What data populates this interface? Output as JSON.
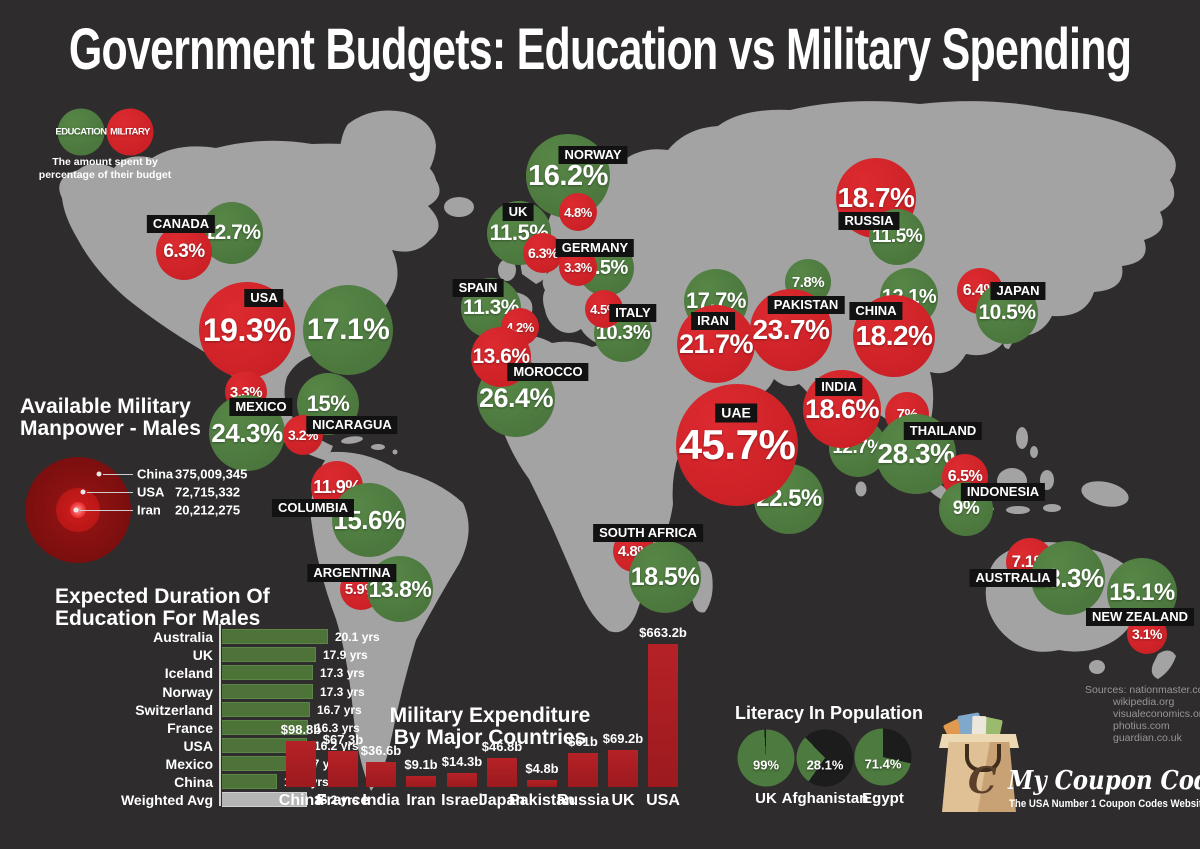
{
  "title": "Government Budgets: Education vs Military Spending",
  "legend": {
    "education_label": "EDUCATION",
    "military_label": "MILITARY",
    "desc_line1": "The amount spent by",
    "desc_line2": "percentage of their budget"
  },
  "map": {
    "countries": [
      {
        "name": "CANADA",
        "military": "6.3%",
        "education": "12.7%"
      },
      {
        "name": "USA",
        "military": "19.3%",
        "education": "17.1%"
      },
      {
        "name": "MEXICO",
        "military": "3.3%",
        "education": "24.3%"
      },
      {
        "name": "NICARAGUA",
        "military": "3.2%",
        "education": "15%"
      },
      {
        "name": "COLUMBIA",
        "military": "11.9%",
        "education": "15.6%"
      },
      {
        "name": "ARGENTINA",
        "military": "5.9%",
        "education": "13.8%"
      },
      {
        "name": "NORWAY",
        "military": "4.8%",
        "education": "16.2%"
      },
      {
        "name": "UK",
        "military": "6.3%",
        "education": "11.5%"
      },
      {
        "name": "GERMANY",
        "military": "3.3%",
        "education": "9.5%"
      },
      {
        "name": "SPAIN",
        "military": "4.2%",
        "education": "11.3%"
      },
      {
        "name": "ITALY",
        "military": "4.5%",
        "education": "10.3%"
      },
      {
        "name": "MOROCCO",
        "military": "13.6%",
        "education": "26.4%"
      },
      {
        "name": "RUSSIA",
        "military": "18.7%",
        "education": "11.5%"
      },
      {
        "name": "CHINA",
        "military": "18.2%",
        "education": "12.1%"
      },
      {
        "name": "JAPAN",
        "military": "6.4%",
        "education": "10.5%"
      },
      {
        "name": "IRAN",
        "military": "21.7%",
        "education": "17.7%"
      },
      {
        "name": "PAKISTAN",
        "military": "23.7%",
        "education": "7.8%"
      },
      {
        "name": "UAE",
        "military": "45.7%",
        "education": "22.5%"
      },
      {
        "name": "INDIA",
        "military": "18.6%",
        "education": "12.7%"
      },
      {
        "name": "THAILAND",
        "military": "7%",
        "education": "28.3%"
      },
      {
        "name": "INDONESIA",
        "military": "6.5%",
        "education": "9%"
      },
      {
        "name": "SOUTH AFRICA",
        "military": "4.8%",
        "education": "18.5%"
      },
      {
        "name": "AUSTRALIA",
        "military": "7.1%",
        "education": "13.3%"
      },
      {
        "name": "NEW ZEALAND",
        "military": "3.1%",
        "education": "15.1%"
      }
    ]
  },
  "manpower": {
    "title_line1": "Available Military",
    "title_line2": "Manpower - Males",
    "entries": [
      {
        "country": "China",
        "value": "375,009,345"
      },
      {
        "country": "USA",
        "value": "72,715,332"
      },
      {
        "country": "Iran",
        "value": "20,212,275"
      }
    ]
  },
  "education_duration": {
    "title_line1": "Expected Duration Of",
    "title_line2": "Education For Males",
    "rows": [
      {
        "label": "Australia",
        "value": "20.1 yrs",
        "years": 20.1
      },
      {
        "label": "UK",
        "value": "17.9 yrs",
        "years": 17.9
      },
      {
        "label": "Iceland",
        "value": "17.3 yrs",
        "years": 17.3
      },
      {
        "label": "Norway",
        "value": "17.3 yrs",
        "years": 17.3
      },
      {
        "label": "Switzerland",
        "value": "16.7 yrs",
        "years": 16.7
      },
      {
        "label": "France",
        "value": "16.3 yrs",
        "years": 16.3
      },
      {
        "label": "USA",
        "value": "16.2 yrs",
        "years": 16.2
      },
      {
        "label": "Mexico",
        "value": "12.7 yrs",
        "years": 12.7
      },
      {
        "label": "China",
        "value": "10.3 yrs",
        "years": 10.3
      },
      {
        "label": "Weighted Avg",
        "value": "16.2 yrs",
        "years": 16.2
      }
    ]
  },
  "military_expenditure": {
    "title_line1": "Military Expenditure",
    "title_line2": "By Major Countries",
    "bars": [
      {
        "label": "China",
        "value": "$98.8b",
        "amount": 98.8
      },
      {
        "label": "France",
        "value": "$67.3b",
        "amount": 67.3
      },
      {
        "label": "India",
        "value": "$36.6b",
        "amount": 36.6
      },
      {
        "label": "Iran",
        "value": "$9.1b",
        "amount": 9.1
      },
      {
        "label": "Israel",
        "value": "$14.3b",
        "amount": 14.3
      },
      {
        "label": "Japan",
        "value": "$46.8b",
        "amount": 46.8
      },
      {
        "label": "Pakistan",
        "value": "$4.8b",
        "amount": 4.8
      },
      {
        "label": "Russia",
        "value": "$61b",
        "amount": 61
      },
      {
        "label": "UK",
        "value": "$69.2b",
        "amount": 69.2
      },
      {
        "label": "USA",
        "value": "$663.2b",
        "amount": 663.2
      }
    ]
  },
  "literacy": {
    "title": "Literacy In Population",
    "pies": [
      {
        "label": "UK",
        "value": "99%",
        "percent": 99
      },
      {
        "label": "Afghanistan",
        "value": "28.1%",
        "percent": 28.1
      },
      {
        "label": "Egypt",
        "value": "71.4%",
        "percent": 71.4
      }
    ]
  },
  "sources": {
    "lines": [
      "Sources: nationmaster.com",
      "wikipedia.org",
      "visualeconomics.org",
      "photius.com",
      "guardian.co.uk"
    ]
  },
  "logo": {
    "name": "My Coupon Codes",
    "tagline": "The USA Number 1 Coupon Codes Website",
    "monogram": "C"
  },
  "colors": {
    "education_green": "#4d7a3e",
    "military_red": "#d02027",
    "bar_red": "#a81f22",
    "pie_dark": "#1c1c1c",
    "background": "#2e2c2c",
    "map_gray": "#a3a3a3"
  },
  "chart_data": [
    {
      "type": "bubble",
      "title": "Government Budgets: Education vs Military Spending",
      "unit": "percent of budget",
      "series": [
        {
          "name": "Education",
          "color": "#4d7a3e"
        },
        {
          "name": "Military",
          "color": "#d02027"
        }
      ],
      "countries": [
        {
          "country": "Canada",
          "education": 12.7,
          "military": 6.3
        },
        {
          "country": "USA",
          "education": 17.1,
          "military": 19.3
        },
        {
          "country": "Mexico",
          "education": 24.3,
          "military": 3.3
        },
        {
          "country": "Nicaragua",
          "education": 15,
          "military": 3.2
        },
        {
          "country": "Columbia",
          "education": 15.6,
          "military": 11.9
        },
        {
          "country": "Argentina",
          "education": 13.8,
          "military": 5.9
        },
        {
          "country": "Norway",
          "education": 16.2,
          "military": 4.8
        },
        {
          "country": "UK",
          "education": 11.5,
          "military": 6.3
        },
        {
          "country": "Germany",
          "education": 9.5,
          "military": 3.3
        },
        {
          "country": "Spain",
          "education": 11.3,
          "military": 4.2
        },
        {
          "country": "Italy",
          "education": 10.3,
          "military": 4.5
        },
        {
          "country": "Morocco",
          "education": 26.4,
          "military": 13.6
        },
        {
          "country": "Russia",
          "education": 11.5,
          "military": 18.7
        },
        {
          "country": "China",
          "education": 12.1,
          "military": 18.2
        },
        {
          "country": "Japan",
          "education": 10.5,
          "military": 6.4
        },
        {
          "country": "Iran",
          "education": 17.7,
          "military": 21.7
        },
        {
          "country": "Pakistan",
          "education": 7.8,
          "military": 23.7
        },
        {
          "country": "UAE",
          "education": 22.5,
          "military": 45.7
        },
        {
          "country": "India",
          "education": 12.7,
          "military": 18.6
        },
        {
          "country": "Thailand",
          "education": 28.3,
          "military": 7
        },
        {
          "country": "Indonesia",
          "education": 9,
          "military": 6.5
        },
        {
          "country": "South Africa",
          "education": 18.5,
          "military": 4.8
        },
        {
          "country": "Australia",
          "education": 13.3,
          "military": 7.1
        },
        {
          "country": "New Zealand",
          "education": 15.1,
          "military": 3.1
        }
      ]
    },
    {
      "type": "concentric",
      "title": "Available Military Manpower - Males",
      "categories": [
        "China",
        "USA",
        "Iran"
      ],
      "values": [
        375009345,
        72715332,
        20212275
      ]
    },
    {
      "type": "bar",
      "orientation": "horizontal",
      "title": "Expected Duration Of Education For Males",
      "unit": "yrs",
      "categories": [
        "Australia",
        "UK",
        "Iceland",
        "Norway",
        "Switzerland",
        "France",
        "USA",
        "Mexico",
        "China",
        "Weighted Avg"
      ],
      "values": [
        20.1,
        17.9,
        17.3,
        17.3,
        16.7,
        16.3,
        16.2,
        12.7,
        10.3,
        16.2
      ]
    },
    {
      "type": "bar",
      "title": "Military Expenditure By Major Countries",
      "unit": "$ billions",
      "categories": [
        "China",
        "France",
        "India",
        "Iran",
        "Israel",
        "Japan",
        "Pakistan",
        "Russia",
        "UK",
        "USA"
      ],
      "values": [
        98.8,
        67.3,
        36.6,
        9.1,
        14.3,
        46.8,
        4.8,
        61,
        69.2,
        663.2
      ]
    },
    {
      "type": "pie",
      "title": "Literacy In Population",
      "unit": "%",
      "categories": [
        "UK",
        "Afghanistan",
        "Egypt"
      ],
      "values": [
        99,
        28.1,
        71.4
      ]
    }
  ]
}
